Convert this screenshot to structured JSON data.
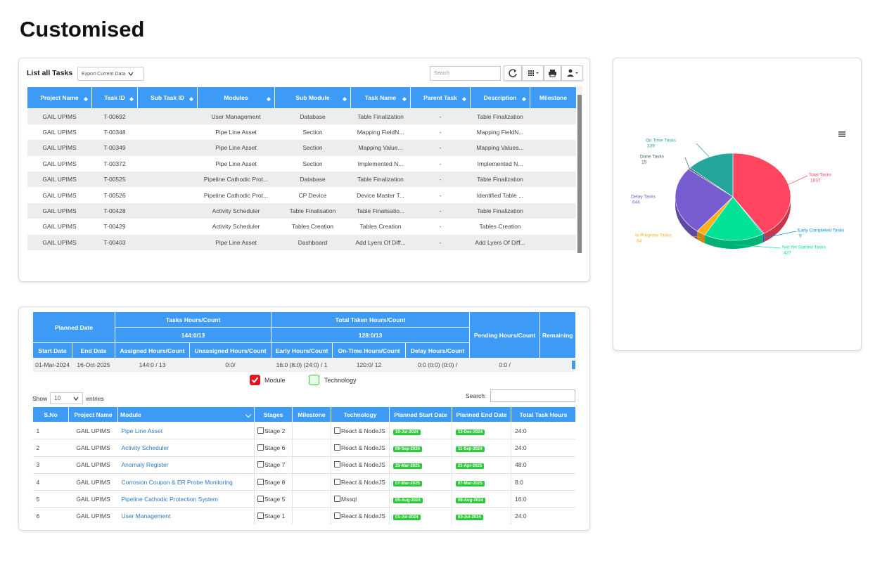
{
  "title": "Customised",
  "task_list": {
    "heading": "List all Tasks",
    "export": "Export Current Data",
    "search_placeholder": "Search",
    "columns": [
      "Project Name",
      "Task ID",
      "Sub Task ID",
      "Modules",
      "Sub Module",
      "Task Name",
      "Parent Task",
      "Description",
      "Milestone"
    ],
    "rows": [
      {
        "project": "GAIL UPIMS",
        "task_id": "T-00692",
        "module": "User Management",
        "sub_module": "Database",
        "task_name": "Table Finalization",
        "parent_task": "-",
        "description": "Table Finalization"
      },
      {
        "project": "GAIL UPIMS",
        "task_id": "T-00348",
        "module": "Pipe Line Asset",
        "sub_module": "Section",
        "task_name": "Mapping FieldN...",
        "parent_task": "-",
        "description": "Mapping FieldN..."
      },
      {
        "project": "GAIL UPIMS",
        "task_id": "T-00349",
        "module": "Pipe Line Asset",
        "sub_module": "Section",
        "task_name": "Mapping Value...",
        "parent_task": "-",
        "description": "Mapping Values..."
      },
      {
        "project": "GAIL UPIMS",
        "task_id": "T-00372",
        "module": "Pipe Line Asset",
        "sub_module": "Section",
        "task_name": "Implemented N...",
        "parent_task": "-",
        "description": "Implemented N..."
      },
      {
        "project": "GAIL UPIMS",
        "task_id": "T-00525",
        "module": "Pipeline Cathodic Prot...",
        "sub_module": "Database",
        "task_name": "Table Finalization",
        "parent_task": "-",
        "description": "Table Finalization"
      },
      {
        "project": "GAIL UPIMS",
        "task_id": "T-00526",
        "module": "Pipeline Cathodic Prot...",
        "sub_module": "CP Device",
        "task_name": "Device Master T...",
        "parent_task": "-",
        "description": "Identified Table ..."
      },
      {
        "project": "GAIL UPIMS",
        "task_id": "T-00428",
        "module": "Activity Scheduler",
        "sub_module": "Table Finalisation",
        "task_name": "Table Finalisatio...",
        "parent_task": "-",
        "description": "Table Finalization"
      },
      {
        "project": "GAIL UPIMS",
        "task_id": "T-00429",
        "module": "Activity Scheduler",
        "sub_module": "Tables Creation",
        "task_name": "Tables Creation",
        "parent_task": "-",
        "description": "Tables Creation"
      },
      {
        "project": "GAIL UPIMS",
        "task_id": "T-00403",
        "module": "Pipe Line Asset",
        "sub_module": "Dashboard",
        "task_name": "Add Lyers Of Diff...",
        "parent_task": "-",
        "description": "Add Lyers Of Diff..."
      }
    ]
  },
  "chart_data": {
    "type": "pie",
    "categories": [
      "Total Tasks",
      "Early Completed Tasks",
      "Not Yet Started Tasks",
      "In Progress Tasks",
      "Delay Tasks",
      "Done Tasks",
      "On Time Tasks"
    ],
    "values": [
      1037,
      9,
      427,
      64,
      644,
      15,
      339
    ],
    "colors": [
      "#ff4560",
      "#008ffb",
      "#00e396",
      "#feb019",
      "#775dd0",
      "#455a64",
      "#26a69a"
    ]
  },
  "summary": {
    "planned_date": "Planned Date",
    "tasks_hours": "Tasks Hours/Count",
    "tasks_total": "144:0/13",
    "taken_hours": "Total Taken Hours/Count",
    "taken_total": "128:0/13",
    "pending": "Pending Hours/Count",
    "remaining": "Remaining",
    "sub_headers": [
      "Start Date",
      "End Date",
      "Assigned Hours/Count",
      "Unassigned Hours/Count",
      "Early Hours/Count",
      "On-Time Hours/Count",
      "Delay Hours/Count"
    ],
    "row": [
      "01-Mar-2024",
      "16-Oct-2025",
      "144:0 / 13",
      "0:0/",
      "16:0 (8:0) (24:0) / 1",
      "120:0/ 12",
      "0:0 (0:0) (0:0) /",
      "0:0 /"
    ]
  },
  "legend": {
    "module": "Module",
    "technology": "Technology"
  },
  "project_table": {
    "show": "Show",
    "page_size": "10",
    "entries": "entries",
    "search": "Search:",
    "columns": [
      "S.No",
      "Project Name",
      "Module",
      "Stages",
      "Milestone",
      "Technology",
      "Planned Start Date",
      "Planned End Date",
      "Total Task Hours"
    ],
    "rows": [
      {
        "sno": "1",
        "project": "GAIL UPIMS",
        "module": "Pipe Line Asset",
        "stage": "Stage 2",
        "technology": "React & NodeJS",
        "start": "10-Jul-2024",
        "end": "13-Dec-2024",
        "hours": "24:0"
      },
      {
        "sno": "2",
        "project": "GAIL UPIMS",
        "module": "Activity Scheduler",
        "stage": "Stage 6",
        "technology": "React & NodeJS",
        "start": "09-Sep-2024",
        "end": "11-Sep-2024",
        "hours": "24:0"
      },
      {
        "sno": "3",
        "project": "GAIL UPIMS",
        "module": "Anomaly Register",
        "stage": "Stage 7",
        "technology": "React & NodeJS",
        "start": "25-Mar-2025",
        "end": "21-Apr-2025",
        "hours": "48:0"
      },
      {
        "sno": "4",
        "project": "GAIL UPIMS",
        "module": "Corrosion Coupon & ER Probe Monitoring",
        "stage": "Stage 8",
        "technology": "React & NodeJS",
        "start": "07-Mar-2025",
        "end": "07-Mar-2025",
        "hours": "8:0"
      },
      {
        "sno": "5",
        "project": "GAIL UPIMS",
        "module": "Pipeline Cathodic Protection System",
        "stage": "Stage 5",
        "technology": "Mssql",
        "start": "05-Aug-2024",
        "end": "08-Aug-2024",
        "hours": "16:0"
      },
      {
        "sno": "6",
        "project": "GAIL UPIMS",
        "module": "User Management",
        "stage": "Stage 1",
        "technology": "React & NodeJS",
        "start": "01-Jul-2024",
        "end": "03-Jul-2024",
        "hours": "24:0"
      }
    ]
  }
}
